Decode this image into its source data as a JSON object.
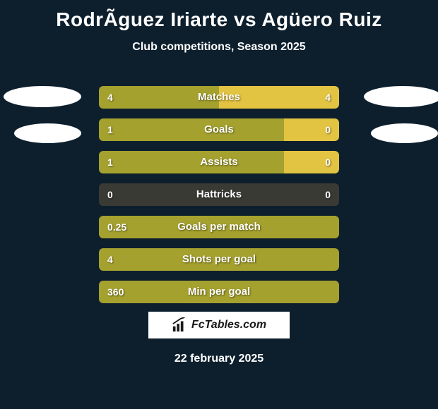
{
  "title": "RodrÃ­guez Iriarte vs Agüero Ruiz",
  "subtitle": "Club competitions, Season 2025",
  "date": "22 february 2025",
  "logo_text": "FcTables.com",
  "colors": {
    "background": "#0d1f2d",
    "bar_left": "#a5a12e",
    "bar_right": "#e2c342",
    "bar_bg": "#3a3a35",
    "text": "#ffffff",
    "ellipse": "#ffffff"
  },
  "stats": [
    {
      "label": "Matches",
      "left_val": "4",
      "right_val": "4",
      "left_w": 50,
      "right_w": 50,
      "show_right": true
    },
    {
      "label": "Goals",
      "left_val": "1",
      "right_val": "0",
      "left_w": 77,
      "right_w": 23,
      "show_right": true
    },
    {
      "label": "Assists",
      "left_val": "1",
      "right_val": "0",
      "left_w": 77,
      "right_w": 23,
      "show_right": true
    },
    {
      "label": "Hattricks",
      "left_val": "0",
      "right_val": "0",
      "left_w": 0,
      "right_w": 0,
      "show_right": true
    },
    {
      "label": "Goals per match",
      "left_val": "0.25",
      "right_val": "",
      "left_w": 100,
      "right_w": 0,
      "show_right": false
    },
    {
      "label": "Shots per goal",
      "left_val": "4",
      "right_val": "",
      "left_w": 100,
      "right_w": 0,
      "show_right": false
    },
    {
      "label": "Min per goal",
      "left_val": "360",
      "right_val": "",
      "left_w": 100,
      "right_w": 0,
      "show_right": false
    }
  ]
}
